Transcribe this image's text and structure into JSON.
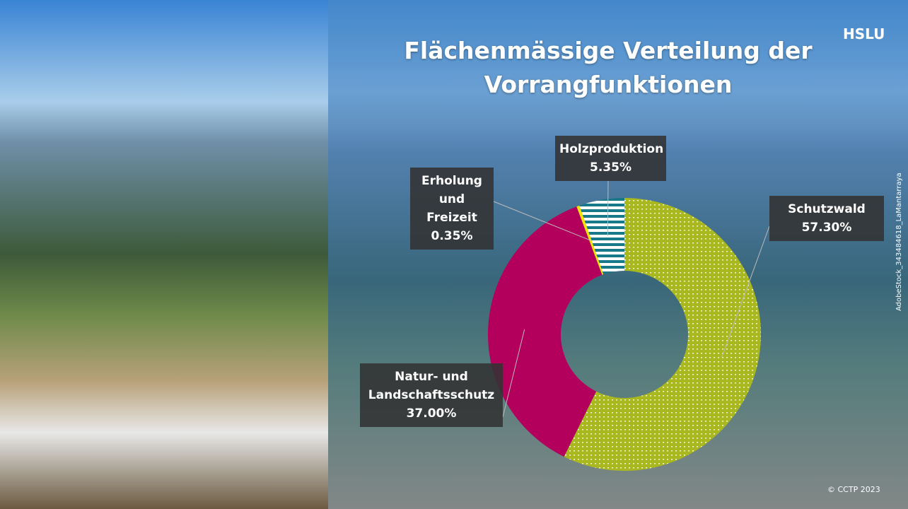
{
  "chart_data": {
    "type": "pie",
    "title": "Flächenmässige Verteilung der Vorrangfunktionen",
    "logo": "HSLU",
    "image_credit": "AdobeStock_343484618_LaMantarraya",
    "copyright": "© CCTP 2023",
    "categories": [
      "Schutzwald",
      "Natur- und Landschaftsschutz",
      "Erholung und Freizeit",
      "Holzproduktion"
    ],
    "values": [
      57.3,
      37.0,
      0.35,
      5.35
    ],
    "value_labels": [
      "57.30%",
      "37.00%",
      "0.35%",
      "5.35%"
    ],
    "colors": [
      "#a9b81f",
      "#b3005c",
      "#f2e600",
      "#17788a"
    ],
    "donut": true
  }
}
